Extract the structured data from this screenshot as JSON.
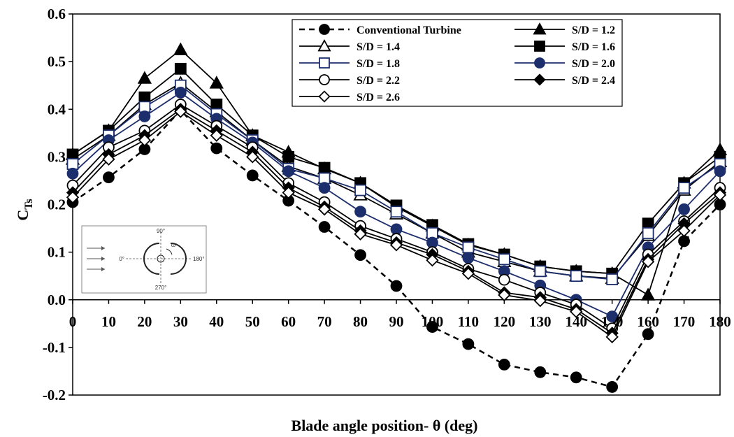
{
  "chart_data": {
    "type": "line",
    "title": "",
    "xlabel": "Blade angle position- θ (deg)",
    "ylabel_main": "C",
    "ylabel_sub": "Ts",
    "xlim": [
      0,
      180
    ],
    "ylim": [
      -0.2,
      0.6
    ],
    "x": [
      0,
      10,
      20,
      30,
      40,
      50,
      60,
      70,
      80,
      90,
      100,
      110,
      120,
      130,
      140,
      150,
      160,
      170,
      180
    ],
    "x_tick_labels": [
      "0",
      "10",
      "20",
      "30",
      "40",
      "50",
      "60",
      "70",
      "80",
      "90",
      "100",
      "110",
      "120",
      "130",
      "140",
      "150",
      "160",
      "170",
      "180"
    ],
    "y_ticks": [
      -0.2,
      -0.1,
      0.0,
      0.1,
      0.2,
      0.3,
      0.4,
      0.5,
      0.6
    ],
    "y_tick_labels": [
      "-0.2",
      "-0.1",
      "0.0",
      "0.1",
      "0.2",
      "0.3",
      "0.4",
      "0.5",
      "0.6"
    ],
    "grid": "none",
    "legend_position": "top-right",
    "series": [
      {
        "name": "Conventional Turbine",
        "color": "#000000",
        "dash": true,
        "marker": "circle",
        "fill": "#000000",
        "values": [
          0.205,
          0.257,
          0.316,
          0.398,
          0.318,
          0.261,
          0.208,
          0.153,
          0.094,
          0.029,
          -0.057,
          -0.093,
          -0.136,
          -0.152,
          -0.163,
          -0.183,
          -0.072,
          0.123,
          0.2
        ]
      },
      {
        "name": "S/D = 1.2",
        "color": "#000000",
        "dash": false,
        "marker": "triangle",
        "fill": "#000000",
        "values": [
          0.305,
          0.355,
          0.465,
          0.525,
          0.455,
          0.345,
          0.31,
          0.275,
          0.245,
          0.195,
          0.155,
          0.115,
          0.095,
          0.07,
          0.06,
          0.055,
          0.01,
          0.245,
          0.315
        ]
      },
      {
        "name": "S/D = 1.4",
        "color": "#000000",
        "dash": false,
        "marker": "triangle",
        "fill": "#ffffff",
        "values": [
          0.295,
          0.345,
          0.41,
          0.455,
          0.395,
          0.335,
          0.28,
          0.255,
          0.22,
          0.18,
          0.14,
          0.1,
          0.08,
          0.06,
          0.05,
          0.045,
          0.135,
          0.23,
          0.29
        ]
      },
      {
        "name": "S/D = 1.6",
        "color": "#000000",
        "dash": false,
        "marker": "square",
        "fill": "#000000",
        "values": [
          0.305,
          0.355,
          0.425,
          0.485,
          0.41,
          0.345,
          0.3,
          0.277,
          0.245,
          0.198,
          0.157,
          0.117,
          0.095,
          0.07,
          0.06,
          0.055,
          0.16,
          0.245,
          0.3
        ]
      },
      {
        "name": "S/D = 1.8",
        "color": "#1c2e6b",
        "dash": false,
        "marker": "square",
        "fill": "#ffffff",
        "values": [
          0.285,
          0.345,
          0.405,
          0.45,
          0.39,
          0.335,
          0.275,
          0.255,
          0.23,
          0.185,
          0.14,
          0.11,
          0.085,
          0.06,
          0.05,
          0.043,
          0.14,
          0.235,
          0.285
        ]
      },
      {
        "name": "S/D = 2.0",
        "color": "#1c2e6b",
        "dash": false,
        "marker": "circle",
        "fill": "#1c2e6b",
        "values": [
          0.265,
          0.335,
          0.385,
          0.435,
          0.38,
          0.33,
          0.27,
          0.235,
          0.185,
          0.148,
          0.12,
          0.088,
          0.06,
          0.03,
          0.0,
          -0.035,
          0.11,
          0.19,
          0.27
        ]
      },
      {
        "name": "S/D = 2.2",
        "color": "#000000",
        "dash": false,
        "marker": "circle",
        "fill": "#ffffff",
        "values": [
          0.24,
          0.32,
          0.355,
          0.41,
          0.365,
          0.32,
          0.245,
          0.205,
          0.155,
          0.128,
          0.1,
          0.065,
          0.042,
          0.015,
          -0.01,
          -0.06,
          0.095,
          0.165,
          0.235
        ]
      },
      {
        "name": "S/D = 2.4",
        "color": "#000000",
        "dash": false,
        "marker": "diamond",
        "fill": "#000000",
        "values": [
          0.225,
          0.305,
          0.345,
          0.4,
          0.355,
          0.31,
          0.235,
          0.195,
          0.145,
          0.12,
          0.095,
          0.06,
          0.015,
          0.005,
          -0.02,
          -0.07,
          0.085,
          0.16,
          0.225
        ]
      },
      {
        "name": "S/D = 2.6",
        "color": "#000000",
        "dash": false,
        "marker": "diamond",
        "fill": "#ffffff",
        "values": [
          0.215,
          0.295,
          0.335,
          0.395,
          0.345,
          0.3,
          0.225,
          0.19,
          0.138,
          0.115,
          0.083,
          0.055,
          0.01,
          -0.002,
          -0.025,
          -0.078,
          0.08,
          0.145,
          0.22
        ]
      }
    ],
    "inset": {
      "labels": {
        "top": "90°",
        "left": "0°",
        "right": "180°",
        "bottom": "270°",
        "omega": "ω"
      }
    }
  }
}
